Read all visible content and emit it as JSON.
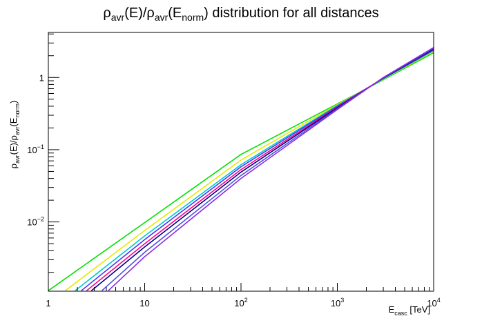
{
  "chart_data": {
    "type": "line",
    "title": {
      "base": "ρ",
      "sub1": "avr",
      "mid": "(E)/ρ",
      "sub2": "avr",
      "open": "(E",
      "sub3": "norm",
      "close": ") distribution for all distances"
    },
    "xlabel": {
      "base": "E",
      "sub": "casc",
      "rest": " [TeV]"
    },
    "ylabel": {
      "base": "ρ",
      "sub1": "avr",
      "mid": "(E)/ρ",
      "sub2": "avr",
      "open": "(E",
      "sub3": "norm",
      "close": ")"
    },
    "x_scale": "log",
    "y_scale": "log",
    "xlim": [
      1,
      10000
    ],
    "ylim": [
      0.0011,
      4.2
    ],
    "grid": false,
    "x_major_ticks": [
      {
        "value": 1,
        "label": "1",
        "exp": ""
      },
      {
        "value": 10,
        "label": "10",
        "exp": ""
      },
      {
        "value": 100,
        "label": "10",
        "exp": "2"
      },
      {
        "value": 1000,
        "label": "10",
        "exp": "3"
      },
      {
        "value": 10000,
        "label": "10",
        "exp": "4"
      }
    ],
    "y_major_ticks": [
      {
        "value": 0.01,
        "label": "10",
        "exp": "−2"
      },
      {
        "value": 0.1,
        "label": "10",
        "exp": "−1"
      },
      {
        "value": 1,
        "label": "1",
        "exp": ""
      }
    ],
    "series": [
      {
        "color": "#00e000",
        "values": [
          [
            1,
            0.00112
          ],
          [
            10,
            0.0098
          ],
          [
            100,
            0.086
          ],
          [
            1000,
            0.43
          ],
          [
            3000,
            0.93
          ],
          [
            10000,
            2.2
          ]
        ]
      },
      {
        "color": "#e8e800",
        "values": [
          [
            1.5,
            0.00112
          ],
          [
            10,
            0.0076
          ],
          [
            100,
            0.072
          ],
          [
            1000,
            0.42
          ],
          [
            3000,
            0.95
          ],
          [
            10000,
            2.3
          ]
        ]
      },
      {
        "color": "#00c8c8",
        "values": [
          [
            1.9,
            0.00112
          ],
          [
            10,
            0.0064
          ],
          [
            100,
            0.062
          ],
          [
            1000,
            0.41
          ],
          [
            3000,
            0.96
          ],
          [
            10000,
            2.35
          ]
        ]
      },
      {
        "color": "#3c3cff",
        "values": [
          [
            2.2,
            0.00112
          ],
          [
            10,
            0.0057
          ],
          [
            100,
            0.058
          ],
          [
            1000,
            0.4
          ],
          [
            3000,
            0.97
          ],
          [
            10000,
            2.4
          ]
        ]
      },
      {
        "color": "#ff0088",
        "values": [
          [
            2.5,
            0.00112
          ],
          [
            10,
            0.005
          ],
          [
            100,
            0.053
          ],
          [
            1000,
            0.39
          ],
          [
            3000,
            0.98
          ],
          [
            10000,
            2.45
          ]
        ]
      },
      {
        "color": "#000080",
        "values": [
          [
            2.8,
            0.00112
          ],
          [
            10,
            0.0045
          ],
          [
            100,
            0.049
          ],
          [
            1000,
            0.38
          ],
          [
            3000,
            0.98
          ],
          [
            10000,
            2.48
          ]
        ]
      },
      {
        "color": "#5050e0",
        "values": [
          [
            3.6,
            0.00112
          ],
          [
            10,
            0.0038
          ],
          [
            100,
            0.044
          ],
          [
            1000,
            0.37
          ],
          [
            3000,
            0.99
          ],
          [
            10000,
            2.55
          ]
        ]
      },
      {
        "color": "#8a2be2",
        "values": [
          [
            4.2,
            0.00112
          ],
          [
            10,
            0.0033
          ],
          [
            100,
            0.04
          ],
          [
            1000,
            0.36
          ],
          [
            3000,
            1.0
          ],
          [
            10000,
            2.6
          ]
        ]
      }
    ]
  }
}
